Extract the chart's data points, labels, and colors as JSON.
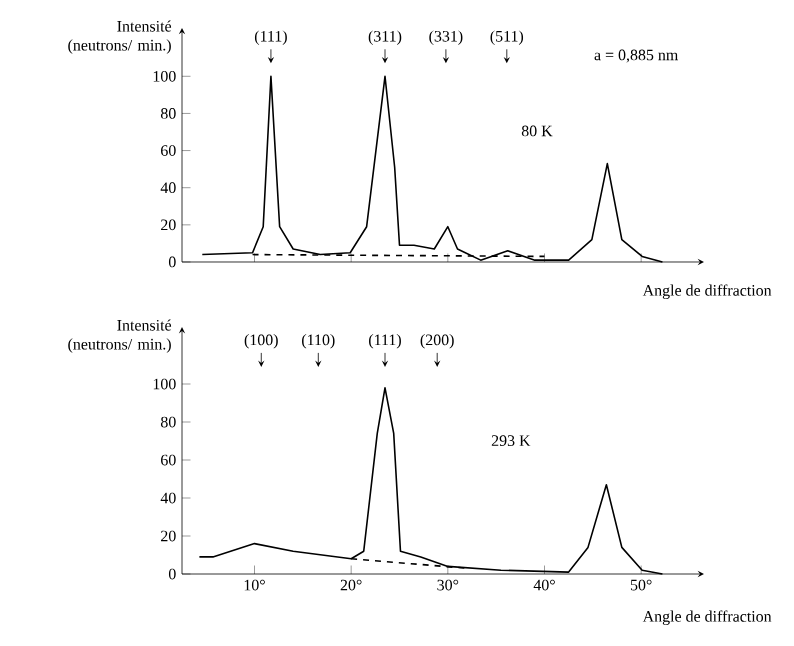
{
  "chart_data": [
    {
      "type": "line",
      "ylabel": "Intensité (neutrons/ min.)",
      "xlabel": "Angle de diffraction",
      "xlim": [
        2.5,
        56.5
      ],
      "ylim": [
        0,
        126
      ],
      "xticks": [
        {
          "value": 10,
          "label": null
        },
        {
          "value": 20,
          "label": null
        },
        {
          "value": 30,
          "label": null
        },
        {
          "value": 40,
          "label": null
        },
        {
          "value": 50,
          "label": null
        }
      ],
      "yticks": [
        0,
        20,
        40,
        60,
        80,
        100
      ],
      "tick_labels": "y",
      "annotations": [
        {
          "text": "(111)",
          "x": 11.7,
          "y": 107
        },
        {
          "text": "(311)",
          "x": 23.5,
          "y": 107
        },
        {
          "text": "(331)",
          "x": 29.8,
          "y": 107
        },
        {
          "text": "(511)",
          "x": 36.1,
          "y": 107
        },
        "a = 0,885 nm",
        "80 K"
      ],
      "series": [
        {
          "color": "#000000",
          "line_style": "solid",
          "x": [
            4.6,
            9.8,
            10.9,
            11.7,
            12.6,
            14.0,
            16.8,
            19.9,
            21.6,
            23.5,
            24.5,
            25.0,
            26.5,
            28.6,
            30.0,
            31.0,
            33.4,
            36.2,
            39.0,
            42.5,
            44.9,
            46.5,
            48.0,
            50.1,
            52.2
          ],
          "values": [
            4,
            5,
            19,
            100,
            19,
            7,
            4,
            5,
            19,
            100,
            51,
            9,
            9,
            7,
            19,
            7,
            1,
            6,
            1,
            1,
            12,
            53,
            12,
            3,
            0
          ]
        },
        {
          "color": "#000000",
          "line_style": "dashed",
          "x": [
            9.8,
            40
          ],
          "values": [
            4,
            3
          ]
        }
      ]
    },
    {
      "type": "line",
      "ylabel": "Intensité (neutrons/ min.)",
      "xlabel": "Angle de diffraction",
      "xlim": [
        2.5,
        56.5
      ],
      "ylim": [
        0,
        130
      ],
      "xticks": [
        {
          "value": 10,
          "label": "10°"
        },
        {
          "value": 20,
          "label": "20°"
        },
        {
          "value": 30,
          "label": "30°"
        },
        {
          "value": 40,
          "label": "40°"
        },
        {
          "value": 50,
          "label": "50°"
        }
      ],
      "yticks": [
        0,
        20,
        40,
        60,
        80,
        100
      ],
      "annotations": [
        {
          "text": "(100)",
          "x": 10.7,
          "y": 109
        },
        {
          "text": "(110)",
          "x": 16.6,
          "y": 109
        },
        {
          "text": "(111)",
          "x": 23.5,
          "y": 109
        },
        {
          "text": "(200)",
          "x": 28.9,
          "y": 109
        },
        "293 K"
      ],
      "series": [
        {
          "color": "#000000",
          "line_style": "solid",
          "x": [
            4.3,
            5.7,
            10,
            14,
            20,
            21.3,
            22.7,
            23.5,
            24.4,
            25.1,
            27.2,
            30,
            35.5,
            42.5,
            44.5,
            46.4,
            48,
            50.1,
            52.2
          ],
          "values": [
            9,
            9,
            16,
            12,
            8,
            12,
            74,
            98,
            74,
            12,
            9,
            4,
            2,
            1,
            14,
            47,
            14,
            2,
            0
          ]
        },
        {
          "color": "#000000",
          "line_style": "dashed",
          "x": [
            20,
            32
          ],
          "values": [
            8,
            3
          ]
        }
      ]
    }
  ]
}
